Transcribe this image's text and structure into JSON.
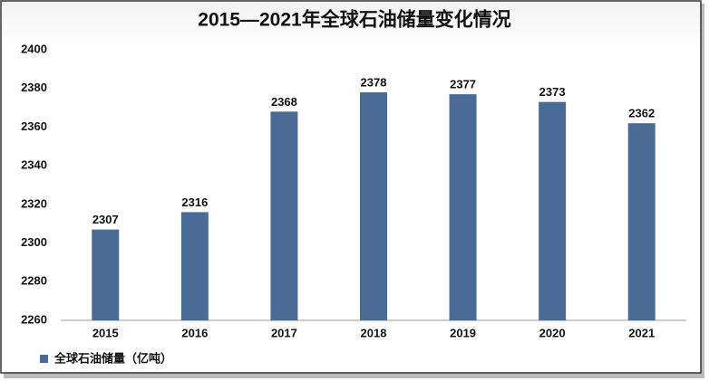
{
  "chart_data": {
    "type": "bar",
    "title": "2015—2021年全球石油储量变化情况",
    "categories": [
      "2015",
      "2016",
      "2017",
      "2018",
      "2019",
      "2020",
      "2021"
    ],
    "series": [
      {
        "name": "全球石油储量（亿吨）",
        "color": "#4a6b96",
        "values": [
          2307,
          2316,
          2368,
          2378,
          2377,
          2373,
          2362
        ]
      }
    ],
    "ylim": [
      2260,
      2400
    ],
    "yticks": [
      2260,
      2280,
      2300,
      2320,
      2340,
      2360,
      2380,
      2400
    ],
    "grid": false,
    "legend": "bottom-left"
  }
}
